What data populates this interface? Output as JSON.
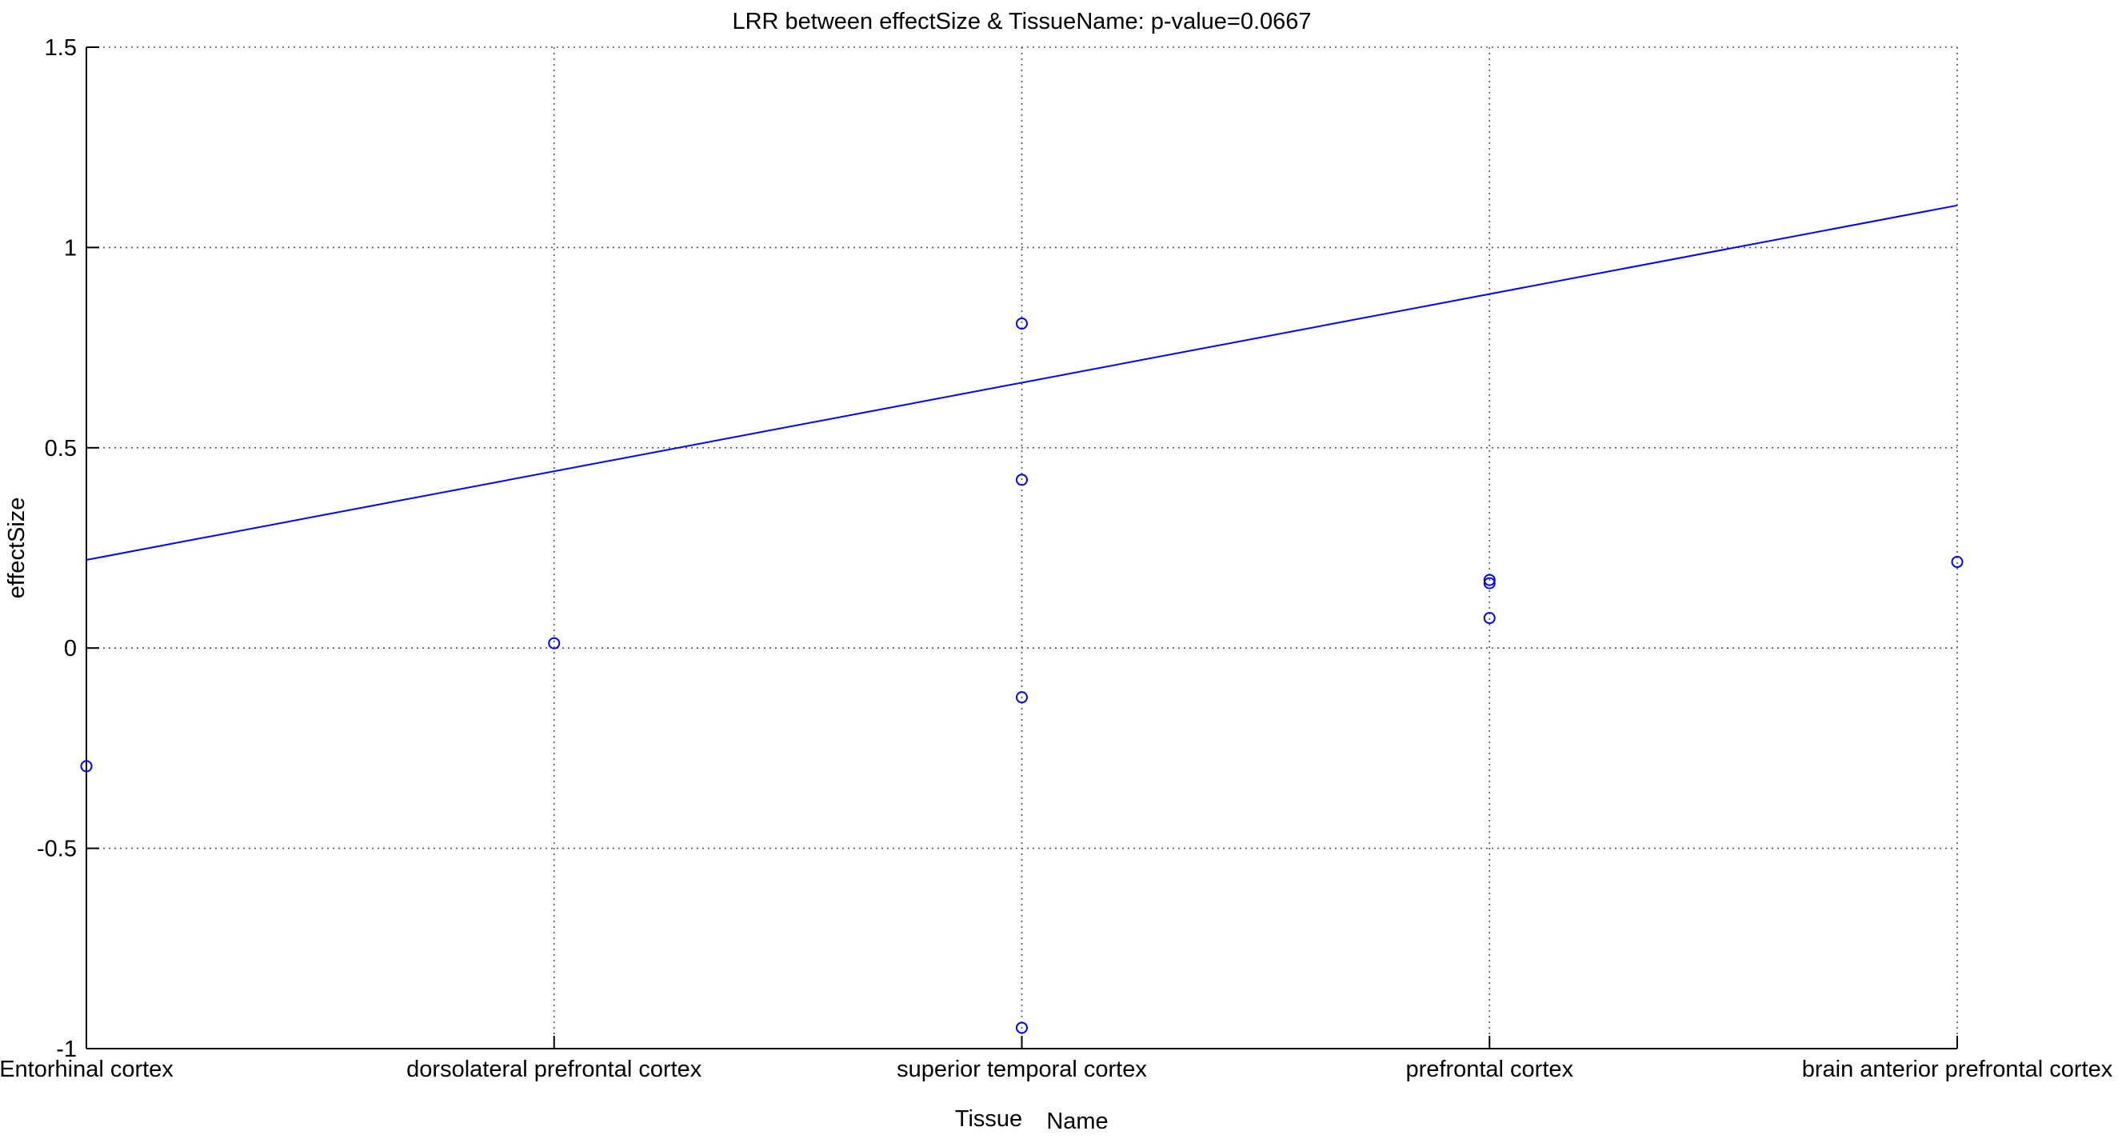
{
  "chart_data": {
    "type": "scatter",
    "title": "LRR between effectSize & TissueName: p-value=0.0667",
    "xlabel_parts": [
      "Tissue",
      "Name"
    ],
    "ylabel": "effectSize",
    "categories": [
      "Entorhinal cortex",
      "dorsolateral prefrontal cortex",
      "superior temporal cortex",
      "prefrontal cortex",
      "brain anterior prefrontal cortex"
    ],
    "xlim": [
      1,
      5
    ],
    "ylim": [
      -1,
      1.5
    ],
    "yticks": [
      -1,
      -0.5,
      0,
      0.5,
      1,
      1.5
    ],
    "ytick_labels": [
      "-1",
      "-0.5",
      "0",
      "0.5",
      "1",
      "1.5"
    ],
    "grid": true,
    "grid_style": "dotted",
    "points": [
      {
        "x": 1,
        "y": -0.295
      },
      {
        "x": 2,
        "y": 0.012
      },
      {
        "x": 3,
        "y": 0.81
      },
      {
        "x": 3,
        "y": 0.42
      },
      {
        "x": 3,
        "y": -0.123
      },
      {
        "x": 3,
        "y": -0.948
      },
      {
        "x": 4,
        "y": 0.17
      },
      {
        "x": 4,
        "y": 0.162
      },
      {
        "x": 4,
        "y": 0.075
      },
      {
        "x": 5,
        "y": 0.215
      }
    ],
    "fit_line": {
      "x": [
        1,
        5
      ],
      "y": [
        0.22,
        1.105
      ]
    },
    "colors": {
      "series": "#0000ff",
      "axes": "#000000",
      "grid": "#555555"
    }
  }
}
